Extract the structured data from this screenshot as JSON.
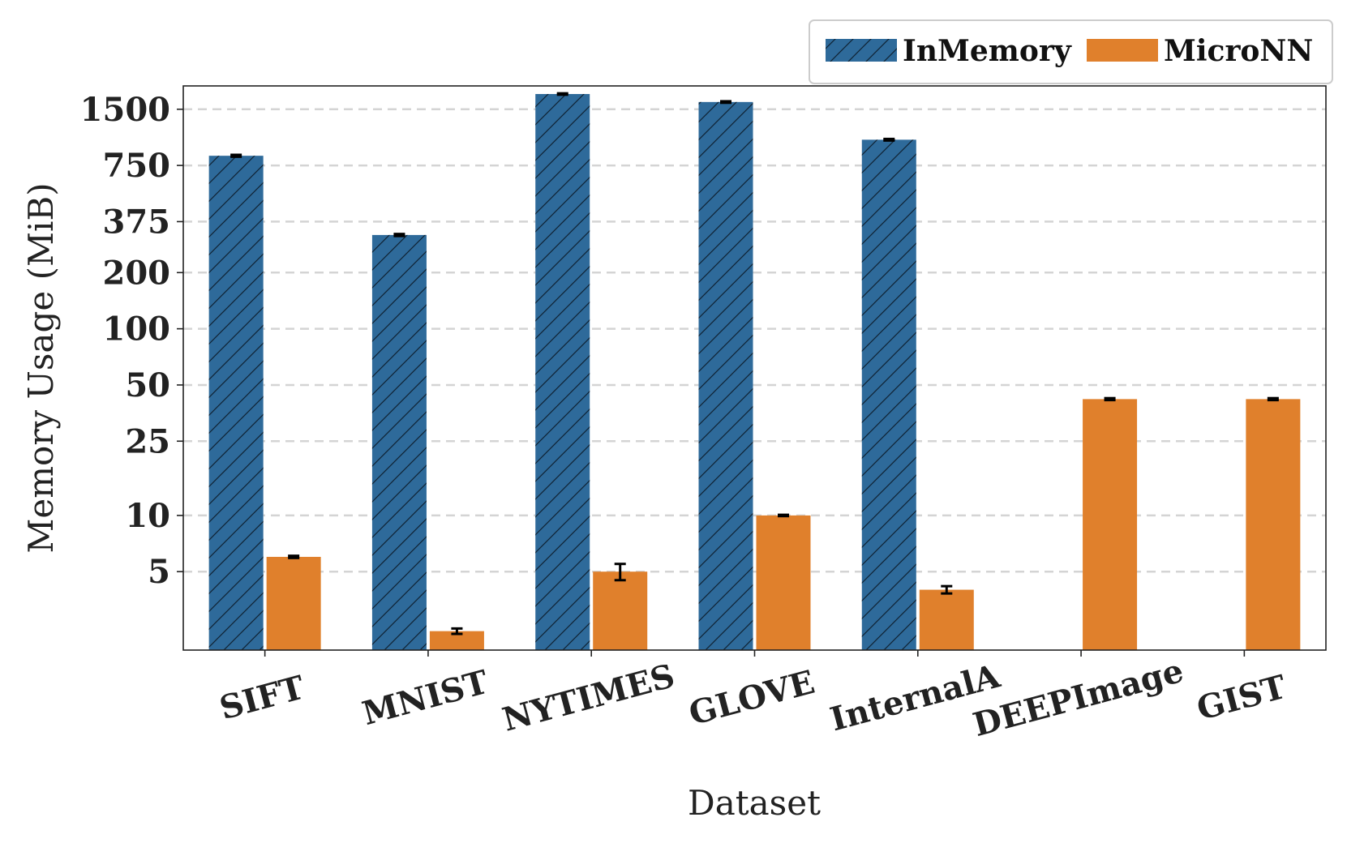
{
  "chart_data": {
    "type": "bar",
    "title": "",
    "xlabel": "Dataset",
    "ylabel": "Memory Usage (MiB)",
    "yscale": "log",
    "ylim": [
      1.9,
      2000
    ],
    "yticks": [
      5,
      10,
      25,
      50,
      100,
      200,
      375,
      750,
      1500
    ],
    "ytick_labels": [
      "5",
      "10",
      "25",
      "50",
      "100",
      "200",
      "375",
      "750",
      "1500"
    ],
    "categories": [
      "SIFT",
      "MNIST",
      "NYTIMES",
      "GLOVE",
      "InternalA",
      "DEEPImage",
      "GIST"
    ],
    "grid": "y-dashed",
    "legend_position": "top-right",
    "series": [
      {
        "name": "InMemory",
        "color": "#2e6a9a",
        "hatch": "diagonal",
        "values": [
          845,
          318,
          1810,
          1640,
          1030,
          null,
          null
        ],
        "errors": [
          10,
          4,
          15,
          15,
          10,
          null,
          null
        ]
      },
      {
        "name": "MicroNN",
        "color": "#e0802c",
        "hatch": "none",
        "values": [
          6.0,
          2.4,
          5.0,
          10.0,
          4.0,
          42,
          42
        ],
        "errors": [
          0.08,
          0.08,
          0.5,
          0.08,
          0.18,
          0.5,
          0.5
        ]
      }
    ]
  }
}
